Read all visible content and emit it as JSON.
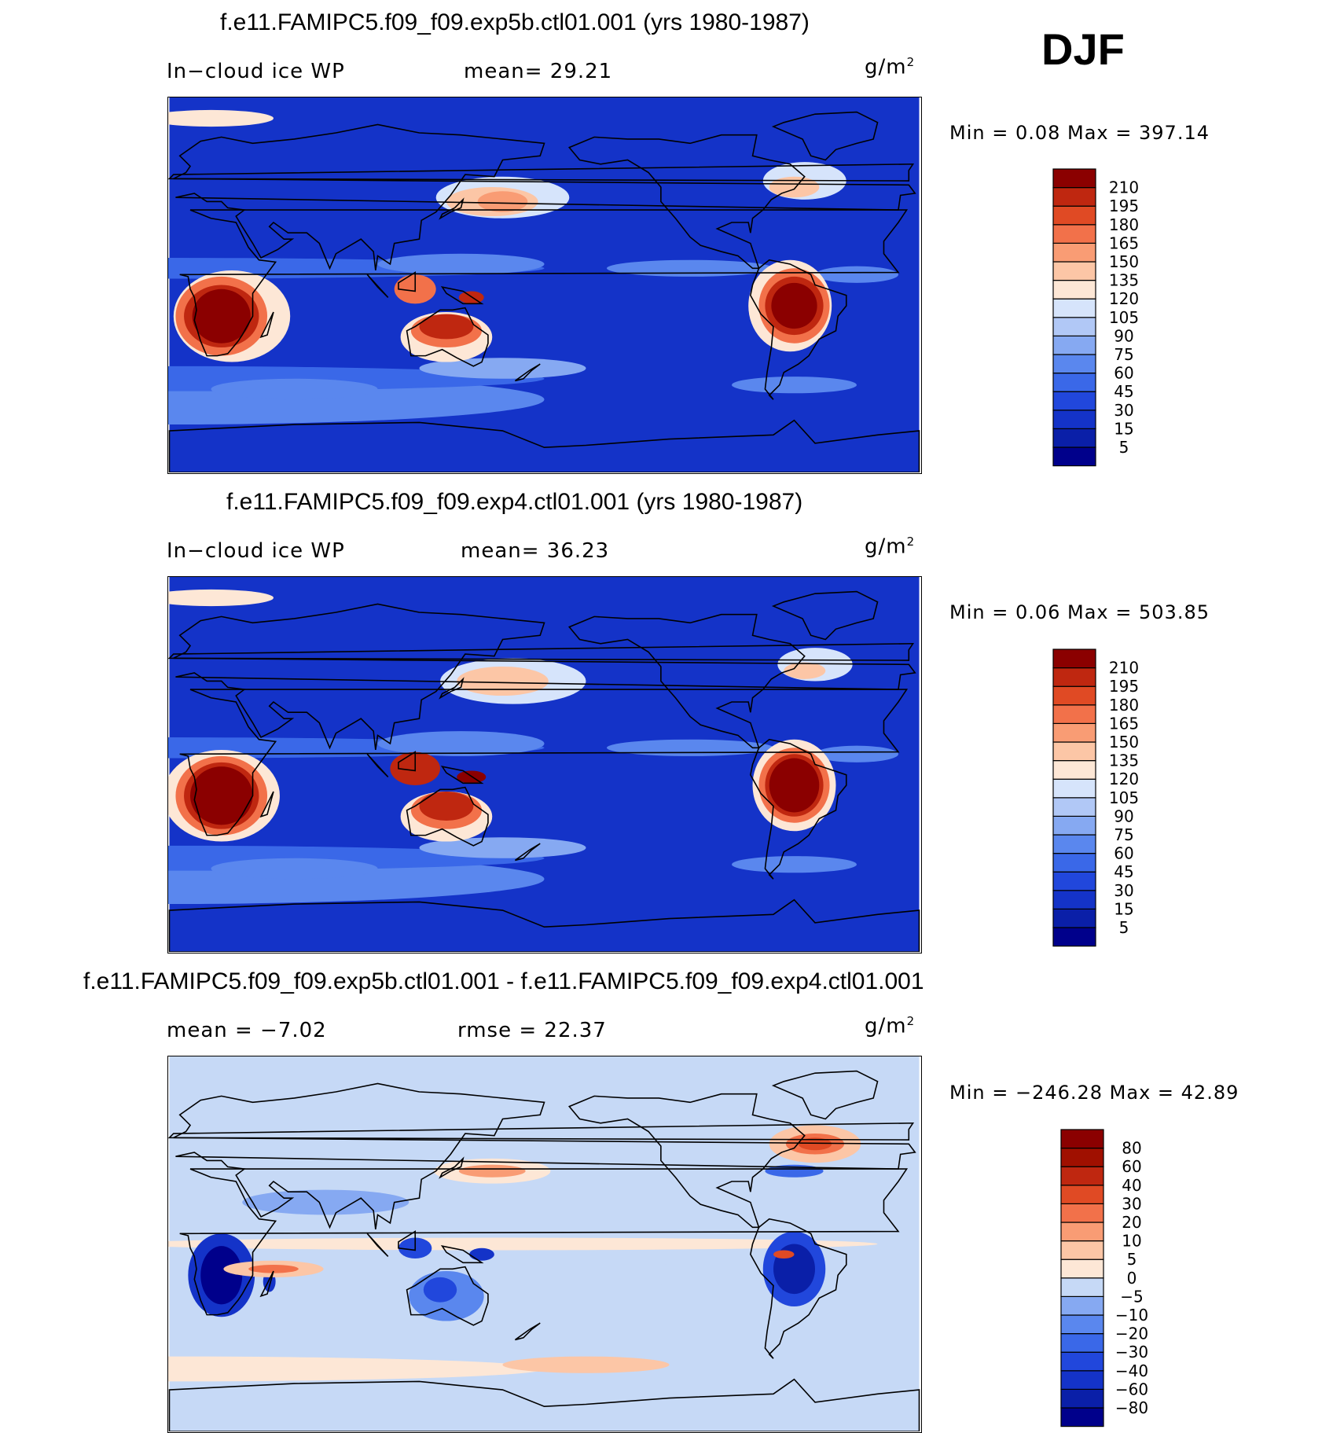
{
  "season": "DJF",
  "panels": [
    {
      "title": "f.e11.FAMIPC5.f09_f09.exp5b.ctl01.001 (yrs 1980-1987)",
      "left_label": "In−cloud ice WP",
      "mid_label": "mean=   29.21",
      "units": "g/m",
      "units_sup": "2",
      "minmax": "Min =     0.08  Max  =  397.14"
    },
    {
      "title": "f.e11.FAMIPC5.f09_f09.exp4.ctl01.001 (yrs 1980-1987)",
      "left_label": "In−cloud ice WP",
      "mid_label": "mean=   36.23",
      "units": "g/m",
      "units_sup": "2",
      "minmax": "Min =     0.06  Max  =  503.85"
    },
    {
      "title": "f.e11.FAMIPC5.f09_f09.exp5b.ctl01.001 - f.e11.FAMIPC5.f09_f09.exp4.ctl01.001",
      "left_label": "mean  =   −7.02",
      "mid_label": "rmse  =   22.37",
      "units": "g/m",
      "units_sup": "2",
      "minmax": "Min  =  −246.28  Max  =    42.89"
    }
  ],
  "chart_data": [
    {
      "type": "heatmap",
      "title": "f.e11.FAMIPC5.f09_f09.exp5b.ctl01.001 (yrs 1980-1987)",
      "variable": "In-cloud ice WP",
      "units": "g/m2",
      "mean": 29.21,
      "min": 0.08,
      "max": 397.14,
      "contour_levels": [
        5,
        15,
        30,
        45,
        60,
        75,
        90,
        105,
        120,
        135,
        150,
        165,
        180,
        195,
        210
      ],
      "colors": [
        "#00008b",
        "#0a1fa8",
        "#1433c8",
        "#2147dc",
        "#3a68e8",
        "#5a87ee",
        "#86a9f2",
        "#b1c8f6",
        "#d6e4fb",
        "#fde7d6",
        "#fcc6a6",
        "#f99c74",
        "#f2714a",
        "#e04a24",
        "#bf2710",
        "#8b0000"
      ]
    },
    {
      "type": "heatmap",
      "title": "f.e11.FAMIPC5.f09_f09.exp4.ctl01.001 (yrs 1980-1987)",
      "variable": "In-cloud ice WP",
      "units": "g/m2",
      "mean": 36.23,
      "min": 0.06,
      "max": 503.85,
      "contour_levels": [
        5,
        15,
        30,
        45,
        60,
        75,
        90,
        105,
        120,
        135,
        150,
        165,
        180,
        195,
        210
      ],
      "colors": [
        "#00008b",
        "#0a1fa8",
        "#1433c8",
        "#2147dc",
        "#3a68e8",
        "#5a87ee",
        "#86a9f2",
        "#b1c8f6",
        "#d6e4fb",
        "#fde7d6",
        "#fcc6a6",
        "#f99c74",
        "#f2714a",
        "#e04a24",
        "#bf2710",
        "#8b0000"
      ]
    },
    {
      "type": "heatmap",
      "title": "f.e11.FAMIPC5.f09_f09.exp5b.ctl01.001 - f.e11.FAMIPC5.f09_f09.exp4.ctl01.001",
      "units": "g/m2",
      "mean": -7.02,
      "rmse": 22.37,
      "min": -246.28,
      "max": 42.89,
      "contour_levels": [
        -80,
        -60,
        -40,
        -30,
        -20,
        -10,
        -5,
        0,
        5,
        10,
        20,
        30,
        40,
        60,
        80
      ],
      "colors": [
        "#00008b",
        "#0a1fa8",
        "#1433c8",
        "#2147dc",
        "#3a68e8",
        "#5a87ee",
        "#86a9f2",
        "#c6d9f6",
        "#fde7d6",
        "#fcc6a6",
        "#f99c74",
        "#f2714a",
        "#e04a24",
        "#bf2710",
        "#a01000",
        "#8b0000"
      ]
    }
  ]
}
